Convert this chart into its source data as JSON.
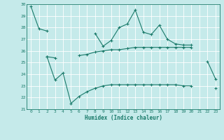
{
  "x": [
    0,
    1,
    2,
    3,
    4,
    5,
    6,
    7,
    8,
    9,
    10,
    11,
    12,
    13,
    14,
    15,
    16,
    17,
    18,
    19,
    20,
    21,
    22,
    23
  ],
  "line1": [
    29.8,
    27.9,
    27.7,
    null,
    null,
    null,
    null,
    null,
    27.5,
    26.4,
    26.9,
    28.0,
    28.3,
    29.5,
    27.6,
    27.4,
    28.2,
    27.0,
    26.6,
    26.5,
    26.5,
    null,
    25.1,
    23.6
  ],
  "line2": [
    null,
    null,
    25.5,
    25.4,
    null,
    null,
    25.6,
    25.7,
    25.9,
    26.0,
    26.1,
    26.1,
    26.2,
    26.3,
    26.3,
    26.3,
    26.3,
    26.3,
    26.3,
    26.3,
    26.3,
    null,
    null,
    null
  ],
  "line3": [
    null,
    null,
    25.5,
    23.5,
    24.1,
    21.5,
    22.1,
    22.5,
    22.8,
    23.0,
    23.1,
    23.1,
    23.1,
    23.1,
    23.1,
    23.1,
    23.1,
    23.1,
    23.1,
    23.0,
    23.0,
    null,
    null,
    22.8
  ],
  "ylim": [
    21,
    30
  ],
  "xlim": [
    -0.5,
    23.5
  ],
  "yticks": [
    21,
    22,
    23,
    24,
    25,
    26,
    27,
    28,
    29,
    30
  ],
  "xticks": [
    0,
    1,
    2,
    3,
    4,
    5,
    6,
    7,
    8,
    9,
    10,
    11,
    12,
    13,
    14,
    15,
    16,
    17,
    18,
    19,
    20,
    21,
    22,
    23
  ],
  "xlabel": "Humidex (Indice chaleur)",
  "line_color": "#1a7a6a",
  "bg_color": "#c5eaea",
  "grid_color": "#ffffff"
}
